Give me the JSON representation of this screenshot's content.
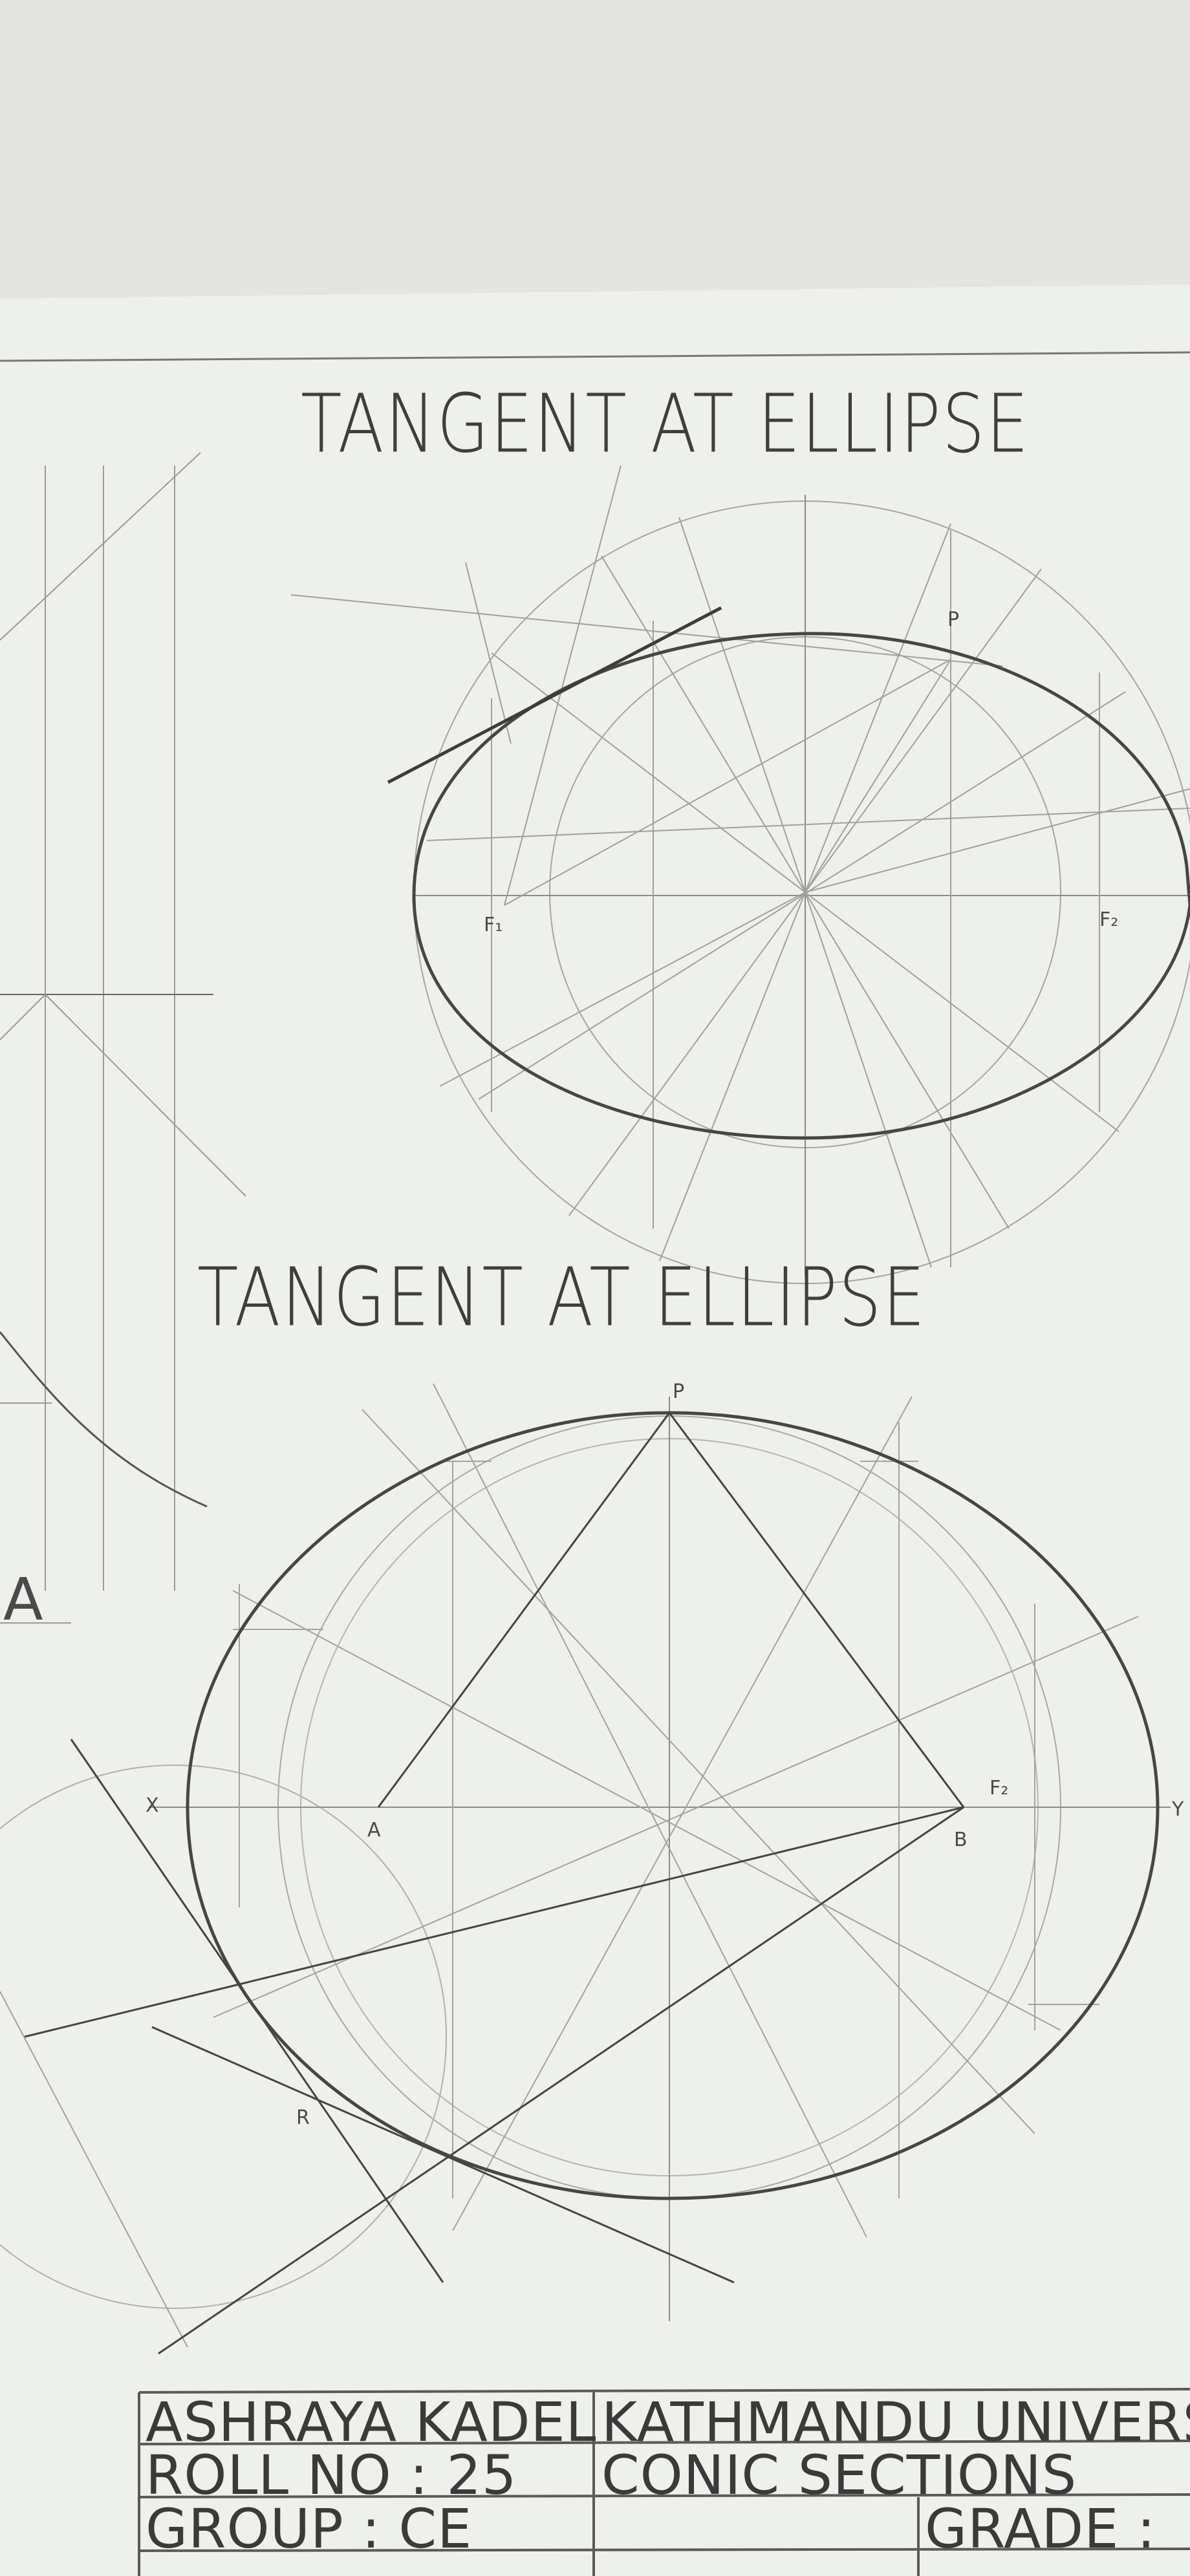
{
  "drawing": {
    "title_top": "TANGENT AT ELLIPSE",
    "title_bottom": "TANGENT AT ELLIPSE",
    "margin_letter": "A",
    "top_labels": {
      "p": "P",
      "f1": "F₁",
      "f2": "F₂"
    },
    "bottom_labels": {
      "x": "X",
      "y": "Y",
      "p": "P",
      "a": "A",
      "b": "B",
      "r": "R",
      "f2": "F₂"
    }
  },
  "title_block": {
    "name": "ASHRAYA KADEL",
    "university": "KATHMANDU UNIVERS",
    "roll": "ROLL NO : 25",
    "topic": "CONIC SECTIONS",
    "group": "GROUP : CE",
    "grade": "GRADE :"
  },
  "colors": {
    "background": "#e2e3de",
    "paper": "#eeefea",
    "pencil": "#4a4a4a"
  }
}
